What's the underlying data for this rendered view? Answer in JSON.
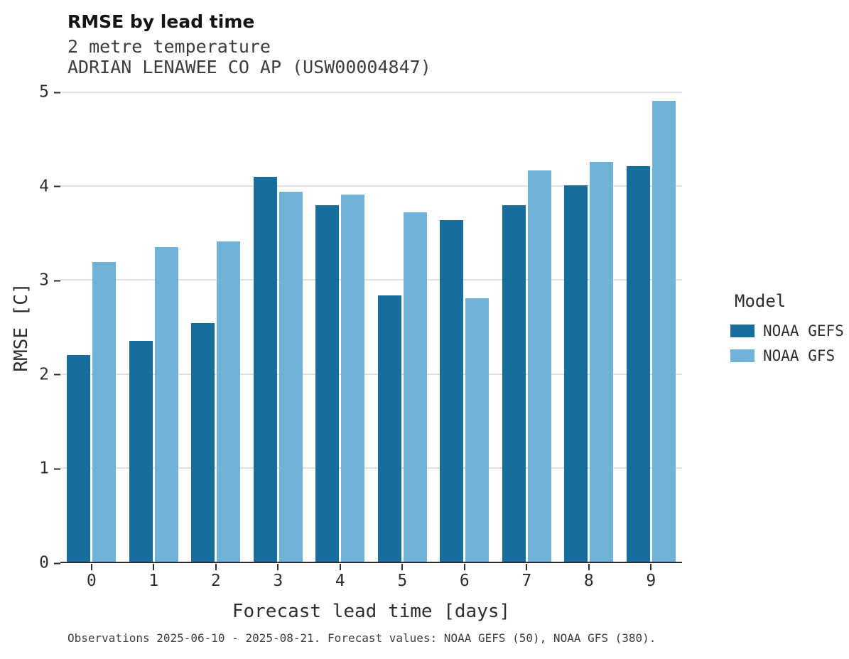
{
  "header": {
    "title": "RMSE by lead time",
    "subtitle_variable": "2 metre temperature",
    "subtitle_station": "ADRIAN LENAWEE CO AP (USW00004847)"
  },
  "chart_data": {
    "type": "bar",
    "title": "RMSE by lead time",
    "subtitle": "2 metre temperature — ADRIAN LENAWEE CO AP (USW00004847)",
    "categories": [
      "0",
      "1",
      "2",
      "3",
      "4",
      "5",
      "6",
      "7",
      "8",
      "9"
    ],
    "series": [
      {
        "name": "NOAA GEFS",
        "color": "#176d9c",
        "values": [
          2.2,
          2.35,
          2.54,
          4.1,
          3.8,
          2.84,
          3.64,
          3.8,
          4.01,
          4.21
        ]
      },
      {
        "name": "NOAA GFS",
        "color": "#70b3d9",
        "values": [
          3.19,
          3.35,
          3.41,
          3.94,
          3.91,
          3.72,
          2.81,
          4.17,
          4.26,
          4.91
        ]
      }
    ],
    "xlabel": "Forecast lead time [days]",
    "ylabel": "RMSE [C]",
    "ylim": [
      0,
      5
    ],
    "yticks": [
      0,
      1,
      2,
      3,
      4,
      5
    ],
    "grid": true,
    "gridline_color": "#e0e0e0",
    "axis_color": "#2e2e2e",
    "legend_title": "Model",
    "legend_position": "right"
  },
  "footer": {
    "caption": "Observations 2025-06-10 - 2025-08-21. Forecast values: NOAA GEFS (50), NOAA GFS (380)."
  }
}
